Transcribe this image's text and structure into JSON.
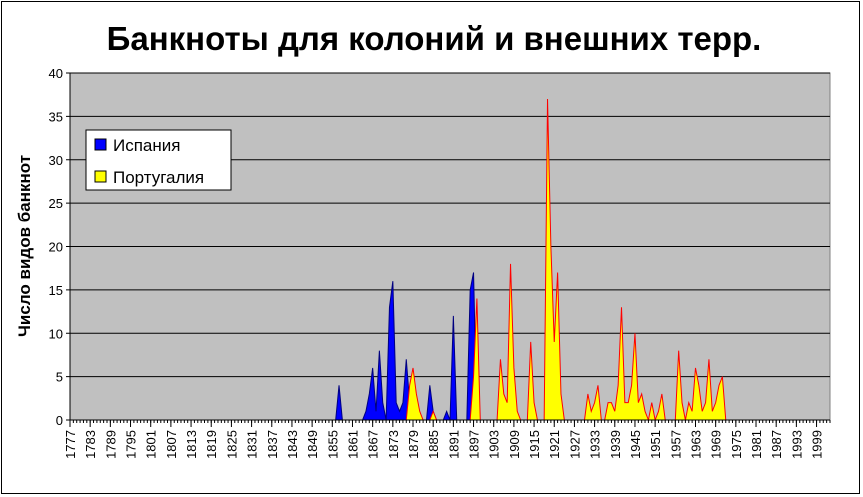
{
  "chart_data": {
    "type": "area",
    "title": "Банкноты для колоний и внешних терр.",
    "xlabel": "",
    "ylabel": "Число видов банкнот",
    "ylim": [
      0,
      40
    ],
    "yticks": [
      0,
      5,
      10,
      15,
      20,
      25,
      30,
      35,
      40
    ],
    "xlim": [
      1777,
      2003
    ],
    "xticks": [
      1777,
      1783,
      1789,
      1795,
      1801,
      1807,
      1813,
      1819,
      1825,
      1831,
      1837,
      1843,
      1849,
      1855,
      1861,
      1867,
      1873,
      1879,
      1885,
      1891,
      1897,
      1903,
      1909,
      1915,
      1921,
      1927,
      1933,
      1939,
      1945,
      1951,
      1957,
      1963,
      1969,
      1975,
      1981,
      1987,
      1993,
      1999
    ],
    "grid": "horizontal",
    "legend_position": "top-left",
    "plot_background": "#C0C0C0",
    "series": [
      {
        "name": "Испания",
        "fill": "#0000FF",
        "stroke": "#000080",
        "points": [
          [
            1856,
            0
          ],
          [
            1857,
            4
          ],
          [
            1858,
            0
          ],
          [
            1864,
            0
          ],
          [
            1865,
            1
          ],
          [
            1866,
            3
          ],
          [
            1867,
            6
          ],
          [
            1868,
            1
          ],
          [
            1869,
            8
          ],
          [
            1870,
            2
          ],
          [
            1871,
            0
          ],
          [
            1872,
            13
          ],
          [
            1873,
            16
          ],
          [
            1874,
            2
          ],
          [
            1875,
            1
          ],
          [
            1876,
            2
          ],
          [
            1877,
            7
          ],
          [
            1878,
            2
          ],
          [
            1879,
            3
          ],
          [
            1880,
            1
          ],
          [
            1881,
            0
          ],
          [
            1883,
            0
          ],
          [
            1884,
            4
          ],
          [
            1885,
            1
          ],
          [
            1886,
            0
          ],
          [
            1888,
            0
          ],
          [
            1889,
            1
          ],
          [
            1890,
            0
          ],
          [
            1891,
            12
          ],
          [
            1892,
            0
          ],
          [
            1895,
            0
          ],
          [
            1896,
            15
          ],
          [
            1897,
            17
          ],
          [
            1898,
            0
          ]
        ]
      },
      {
        "name": "Португалия",
        "fill": "#FFFF00",
        "stroke": "#FF0000",
        "points": [
          [
            1877,
            0
          ],
          [
            1878,
            4
          ],
          [
            1879,
            6
          ],
          [
            1880,
            3
          ],
          [
            1881,
            1
          ],
          [
            1882,
            0
          ],
          [
            1883,
            0
          ],
          [
            1884,
            0
          ],
          [
            1885,
            1
          ],
          [
            1886,
            0
          ],
          [
            1896,
            0
          ],
          [
            1897,
            5
          ],
          [
            1898,
            14
          ],
          [
            1899,
            0
          ],
          [
            1904,
            0
          ],
          [
            1905,
            7
          ],
          [
            1906,
            3
          ],
          [
            1907,
            2
          ],
          [
            1908,
            18
          ],
          [
            1909,
            6
          ],
          [
            1910,
            1
          ],
          [
            1911,
            0
          ],
          [
            1913,
            0
          ],
          [
            1914,
            9
          ],
          [
            1915,
            2
          ],
          [
            1916,
            0
          ],
          [
            1918,
            0
          ],
          [
            1919,
            37
          ],
          [
            1920,
            20
          ],
          [
            1921,
            9
          ],
          [
            1922,
            17
          ],
          [
            1923,
            3
          ],
          [
            1924,
            0
          ],
          [
            1930,
            0
          ],
          [
            1931,
            3
          ],
          [
            1932,
            1
          ],
          [
            1933,
            2
          ],
          [
            1934,
            4
          ],
          [
            1935,
            0
          ],
          [
            1936,
            0
          ],
          [
            1937,
            2
          ],
          [
            1938,
            2
          ],
          [
            1939,
            1
          ],
          [
            1940,
            4
          ],
          [
            1941,
            13
          ],
          [
            1942,
            2
          ],
          [
            1943,
            2
          ],
          [
            1944,
            4
          ],
          [
            1945,
            10
          ],
          [
            1946,
            2
          ],
          [
            1947,
            3
          ],
          [
            1948,
            1
          ],
          [
            1949,
            0
          ],
          [
            1950,
            2
          ],
          [
            1951,
            0
          ],
          [
            1952,
            1
          ],
          [
            1953,
            3
          ],
          [
            1954,
            0
          ],
          [
            1957,
            0
          ],
          [
            1958,
            8
          ],
          [
            1959,
            2
          ],
          [
            1960,
            0
          ],
          [
            1961,
            2
          ],
          [
            1962,
            1
          ],
          [
            1963,
            6
          ],
          [
            1964,
            4
          ],
          [
            1965,
            1
          ],
          [
            1966,
            2
          ],
          [
            1967,
            7
          ],
          [
            1968,
            1
          ],
          [
            1969,
            2
          ],
          [
            1970,
            4
          ],
          [
            1971,
            5
          ],
          [
            1972,
            0
          ]
        ]
      }
    ]
  }
}
